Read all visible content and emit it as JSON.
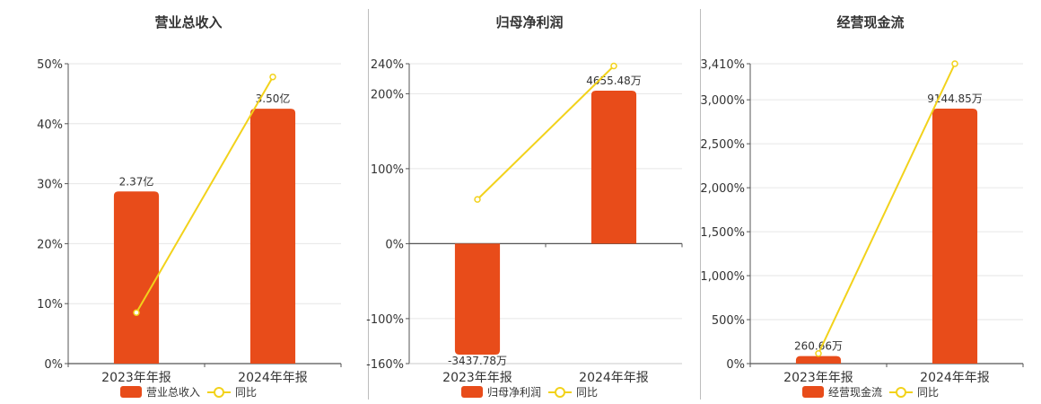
{
  "colors": {
    "bar": "#e84c1a",
    "line": "#f2d21b",
    "grid": "#e6e6e6",
    "axis": "#555555",
    "text": "#333333"
  },
  "chart_data": [
    {
      "type": "bar",
      "title": "营业总收入",
      "categories": [
        "2023年年报",
        "2024年年报"
      ],
      "series": [
        {
          "name": "营业总收入",
          "type": "bar",
          "values": [
            28.7,
            42.5
          ],
          "labels": [
            "2.37亿",
            "3.50亿"
          ]
        },
        {
          "name": "同比",
          "type": "line",
          "values": [
            8.5,
            47.8
          ]
        }
      ],
      "ylim": [
        0,
        50
      ],
      "yticks": [
        0,
        10,
        20,
        30,
        40,
        50
      ],
      "ytick_labels": [
        "0%",
        "10%",
        "20%",
        "30%",
        "40%",
        "50%"
      ],
      "grid": true,
      "legend_position": "bottom"
    },
    {
      "type": "bar",
      "title": "归母净利润",
      "categories": [
        "2023年年报",
        "2024年年报"
      ],
      "series": [
        {
          "name": "归母净利润",
          "type": "bar",
          "values": [
            -148,
            204
          ],
          "labels": [
            "-3437.78万",
            "4655.48万"
          ]
        },
        {
          "name": "同比",
          "type": "line",
          "values": [
            59,
            237
          ]
        }
      ],
      "ylim": [
        -160,
        240
      ],
      "yticks": [
        -160,
        -100,
        0,
        100,
        200,
        240
      ],
      "ytick_labels": [
        "-160%",
        "-100%",
        "0%",
        "100%",
        "200%",
        "240%"
      ],
      "grid": true,
      "legend_position": "bottom"
    },
    {
      "type": "bar",
      "title": "经营现金流",
      "categories": [
        "2023年年报",
        "2024年年报"
      ],
      "series": [
        {
          "name": "经营现金流",
          "type": "bar",
          "values": [
            85,
            2900
          ],
          "labels": [
            "260.66万",
            "9144.85万"
          ]
        },
        {
          "name": "同比",
          "type": "line",
          "values": [
            115,
            3410
          ]
        }
      ],
      "ylim": [
        0,
        3410
      ],
      "yticks": [
        0,
        500,
        1000,
        1500,
        2000,
        2500,
        3000,
        3410
      ],
      "ytick_labels": [
        "0%",
        "500%",
        "1,000%",
        "1,500%",
        "2,000%",
        "2,500%",
        "3,000%",
        "3,410%"
      ],
      "grid": true,
      "legend_position": "bottom"
    }
  ]
}
